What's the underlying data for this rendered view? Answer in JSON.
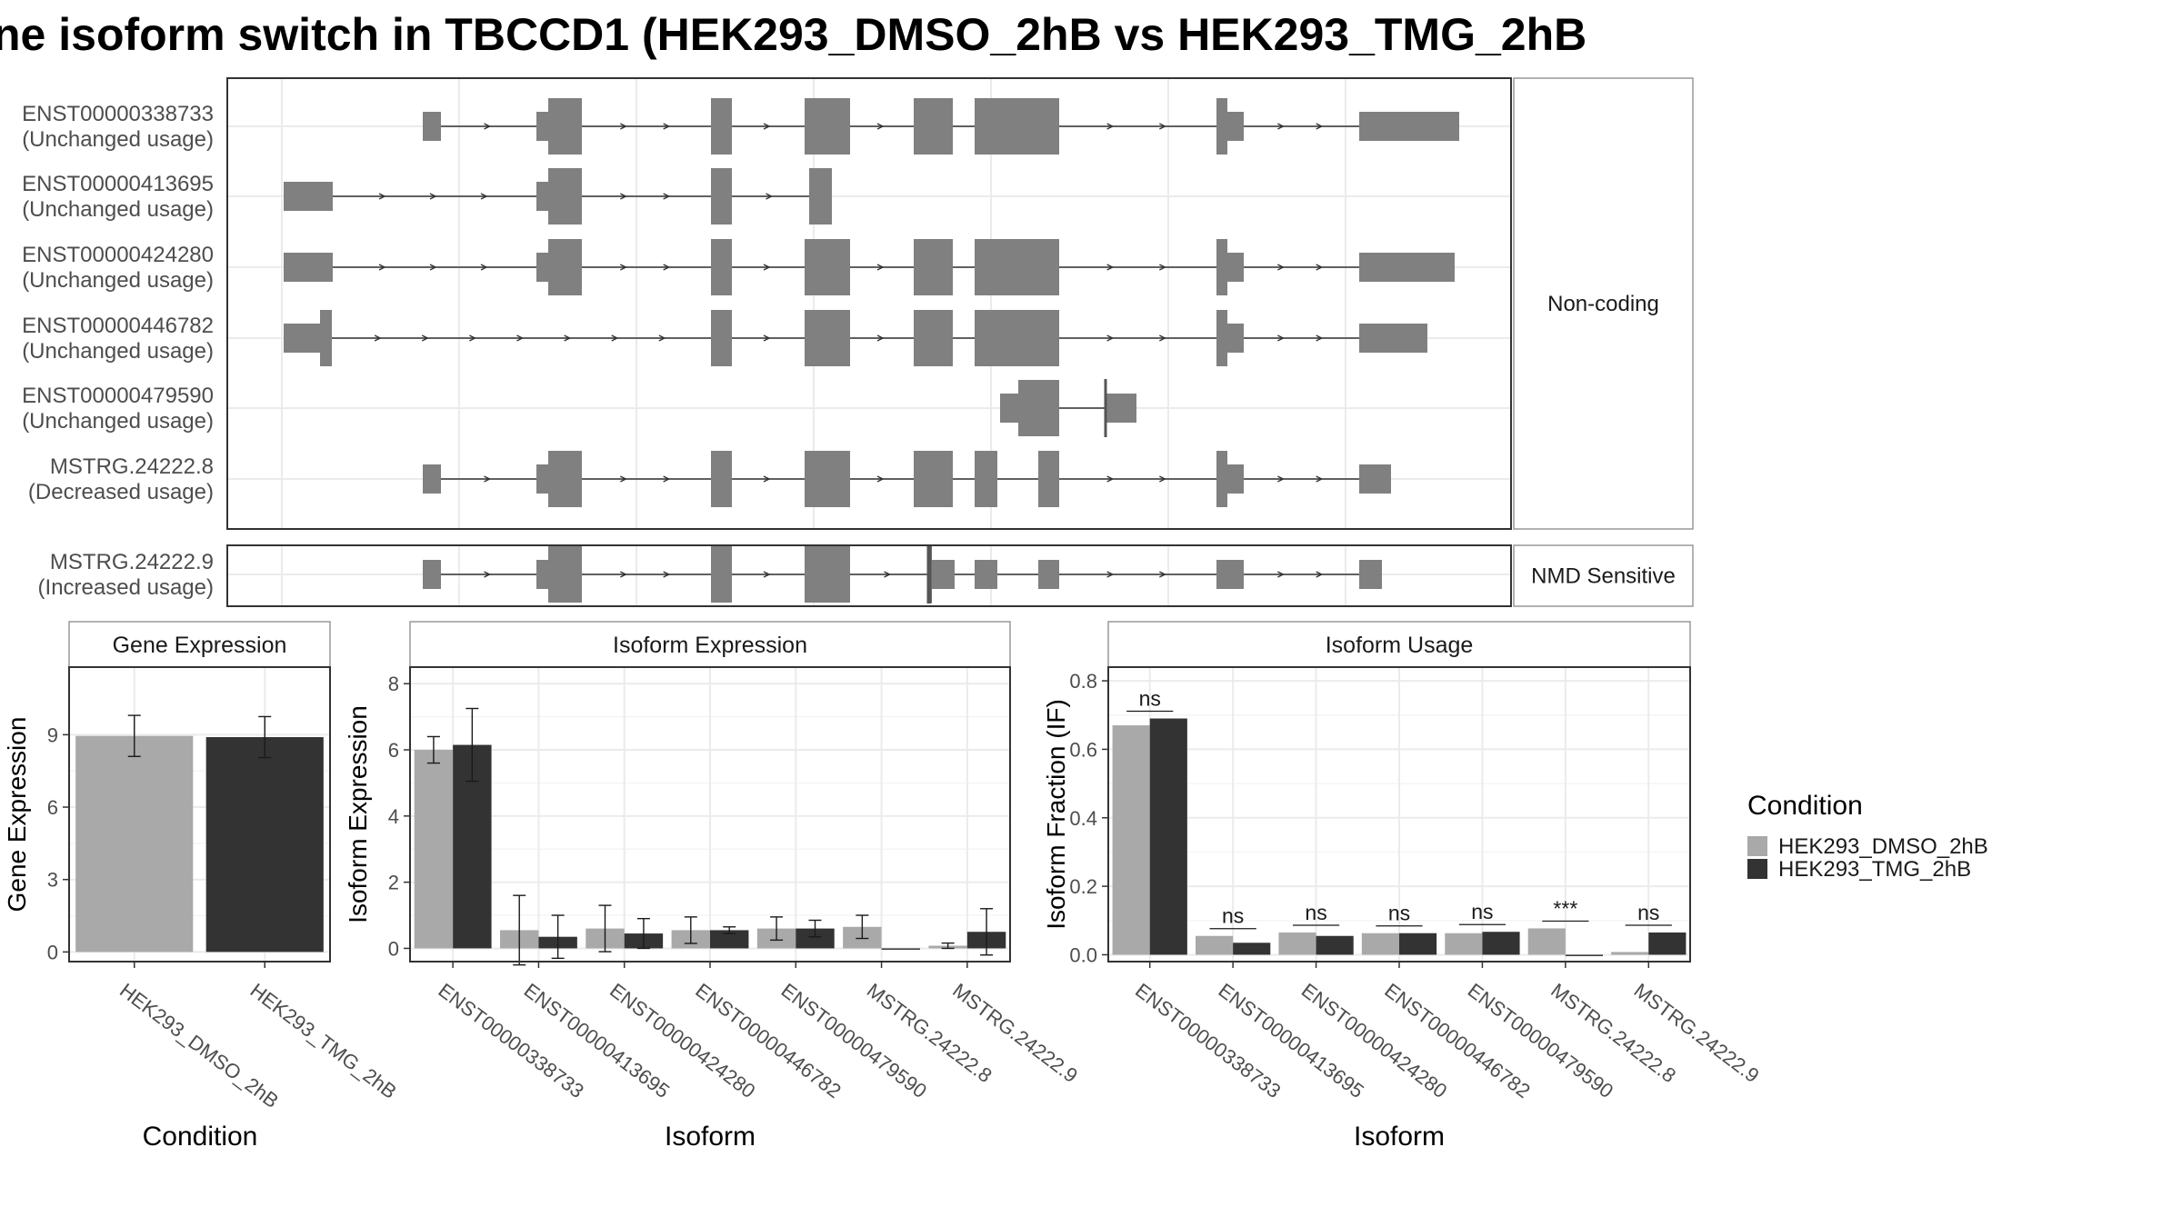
{
  "title": "ne isoform switch in TBCCD1 (HEK293_DMSO_2hB vs HEK293_TMG_2hB",
  "colors": {
    "condition1": "#a9a9a9",
    "condition2": "#333333",
    "structure": "#808080",
    "grid": "#ebebeb",
    "panel_border": "#333333",
    "strip_border": "#999999"
  },
  "structure": {
    "groups": [
      {
        "label": "Non-coding",
        "isoforms": [
          {
            "id": "ENST00000338733",
            "usage": "(Unchanged usage)"
          },
          {
            "id": "ENST00000413695",
            "usage": "(Unchanged usage)"
          },
          {
            "id": "ENST00000424280",
            "usage": "(Unchanged usage)"
          },
          {
            "id": "ENST00000446782",
            "usage": "(Unchanged usage)"
          },
          {
            "id": "ENST00000479590",
            "usage": "(Unchanged usage)"
          },
          {
            "id": "MSTRG.24222.8",
            "usage": "(Decreased usage)"
          }
        ]
      },
      {
        "label": "NMD Sensitive",
        "isoforms": [
          {
            "id": "MSTRG.24222.9",
            "usage": "(Increased usage)"
          }
        ]
      }
    ]
  },
  "legend": {
    "title": "Condition",
    "items": [
      "HEK293_DMSO_2hB",
      "HEK293_TMG_2hB"
    ]
  },
  "chart_data": [
    {
      "type": "bar",
      "title": "Gene Expression",
      "xlabel": "Condition",
      "ylabel": "Gene Expression",
      "ylim": [
        -0.4,
        11.8
      ],
      "yticks": [
        0,
        3,
        6,
        9
      ],
      "categories": [
        "HEK293_DMSO_2hB",
        "HEK293_TMG_2hB"
      ],
      "series": [
        {
          "name": "HEK293_DMSO_2hB",
          "values": [
            8.95,
            null
          ],
          "err": [
            0.85,
            null
          ]
        },
        {
          "name": "HEK293_TMG_2hB",
          "values": [
            null,
            8.9
          ],
          "err": [
            null,
            0.85
          ]
        }
      ]
    },
    {
      "type": "bar",
      "title": "Isoform Expression",
      "xlabel": "Isoform",
      "ylabel": "Isoform Expression",
      "ylim": [
        -0.4,
        8.5
      ],
      "yticks": [
        0,
        2,
        4,
        6,
        8
      ],
      "categories": [
        "ENST00000338733",
        "ENST00000413695",
        "ENST00000424280",
        "ENST00000446782",
        "ENST00000479590",
        "MSTRG.24222.8",
        "MSTRG.24222.9"
      ],
      "series": [
        {
          "name": "HEK293_DMSO_2hB",
          "values": [
            6.0,
            0.55,
            0.6,
            0.55,
            0.6,
            0.65,
            0.08
          ],
          "err": [
            0.4,
            1.05,
            0.7,
            0.4,
            0.35,
            0.35,
            0.08
          ]
        },
        {
          "name": "HEK293_TMG_2hB",
          "values": [
            6.15,
            0.35,
            0.45,
            0.55,
            0.6,
            0.0,
            0.5
          ],
          "err": [
            1.1,
            0.65,
            0.45,
            0.1,
            0.25,
            0.0,
            0.7
          ]
        }
      ]
    },
    {
      "type": "bar",
      "title": "Isoform Usage",
      "xlabel": "Isoform",
      "ylabel": "Isoform Fraction (IF)",
      "ylim": [
        -0.02,
        0.84
      ],
      "yticks": [
        0.0,
        0.2,
        0.4,
        0.6,
        0.8
      ],
      "ytick_labels": [
        "0.0",
        "0.2",
        "0.4",
        "0.6",
        "0.8"
      ],
      "categories": [
        "ENST00000338733",
        "ENST00000413695",
        "ENST00000424280",
        "ENST00000446782",
        "ENST00000479590",
        "MSTRG.24222.8",
        "MSTRG.24222.9"
      ],
      "series": [
        {
          "name": "HEK293_DMSO_2hB",
          "values": [
            0.67,
            0.055,
            0.065,
            0.063,
            0.063,
            0.077,
            0.008
          ]
        },
        {
          "name": "HEK293_TMG_2hB",
          "values": [
            0.69,
            0.035,
            0.055,
            0.063,
            0.067,
            0.0,
            0.065
          ]
        }
      ],
      "significance": [
        "ns",
        "ns",
        "ns",
        "ns",
        "ns",
        "***",
        "ns"
      ]
    }
  ]
}
